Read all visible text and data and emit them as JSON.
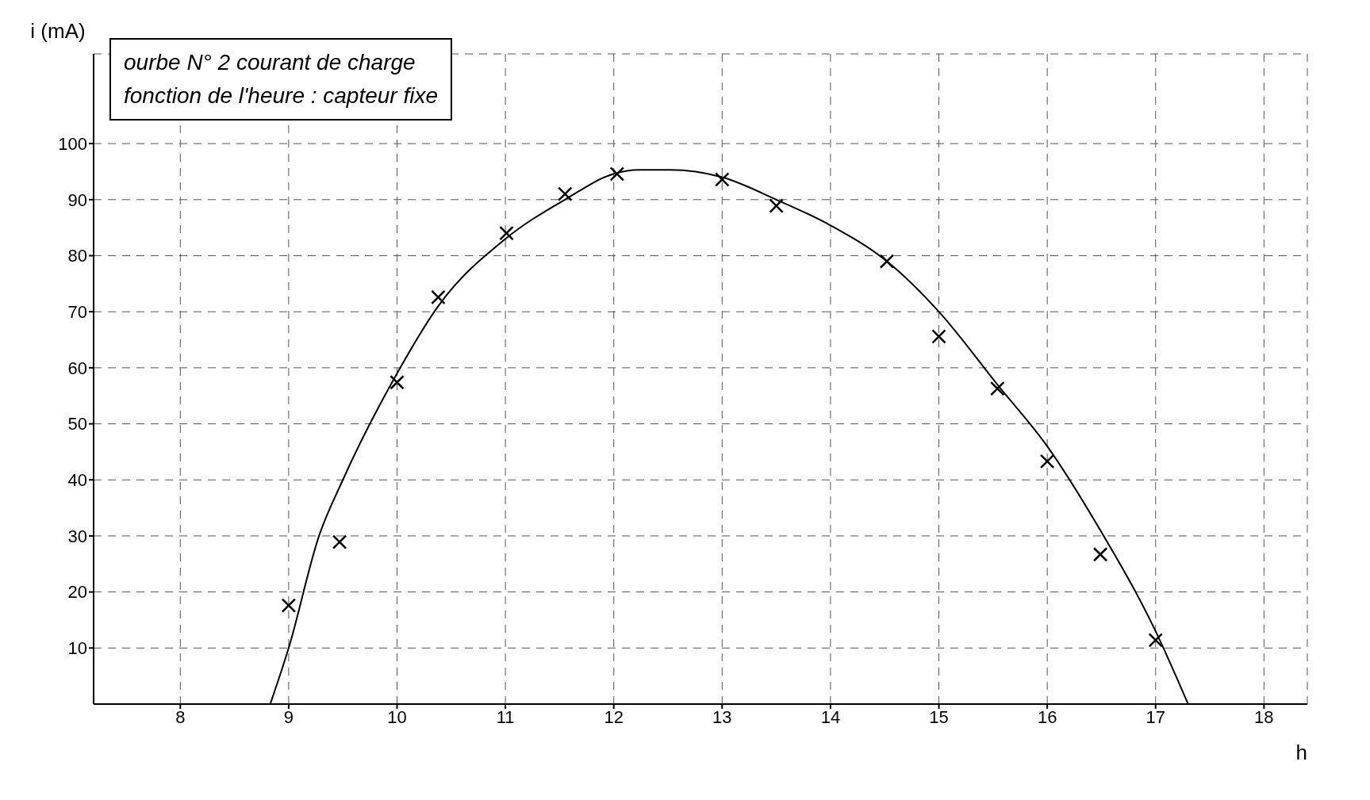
{
  "chart_data": {
    "type": "line",
    "title": "ourbe N° 2  courant de charge",
    "subtitle": "fonction de l'heure : capteur fixe",
    "xlabel": "h",
    "ylabel": "i (mA)",
    "xlim": [
      7.2,
      18.4
    ],
    "xticks": [
      8,
      9,
      10,
      11,
      12,
      13,
      14,
      15,
      16,
      17,
      18
    ],
    "ylim": [
      0,
      116
    ],
    "yticks": [
      10,
      20,
      30,
      40,
      50,
      60,
      70,
      80,
      90,
      100
    ],
    "grid": true,
    "series": [
      {
        "color": "#000000",
        "marker": "none",
        "line_style": "solid",
        "x": [
          8.83,
          9,
          9.28,
          9.5,
          10,
          10.38,
          11,
          11.55,
          12,
          12.23,
          12.52,
          13,
          13.5,
          14,
          14.52,
          15,
          15.54,
          16,
          16.49,
          17,
          17.3
        ],
        "values": [
          0,
          10,
          30,
          40,
          59,
          71,
          83,
          90,
          94.6,
          95.3,
          95.3,
          94,
          90,
          85.4,
          79,
          70,
          57,
          46,
          31,
          13,
          0
        ]
      },
      {
        "type": "scatter",
        "color": "#000000",
        "marker": "cross",
        "x": [
          9,
          9.47,
          10,
          10.38,
          11.01,
          11.55,
          12.03,
          13,
          13.5,
          14.52,
          15,
          15.54,
          16,
          16.49,
          17
        ],
        "values": [
          17.6,
          28.9,
          57.4,
          72.6,
          84,
          91,
          94.6,
          93.6,
          88.9,
          79,
          65.6,
          56.3,
          43.3,
          26.7,
          11.4
        ]
      }
    ]
  }
}
